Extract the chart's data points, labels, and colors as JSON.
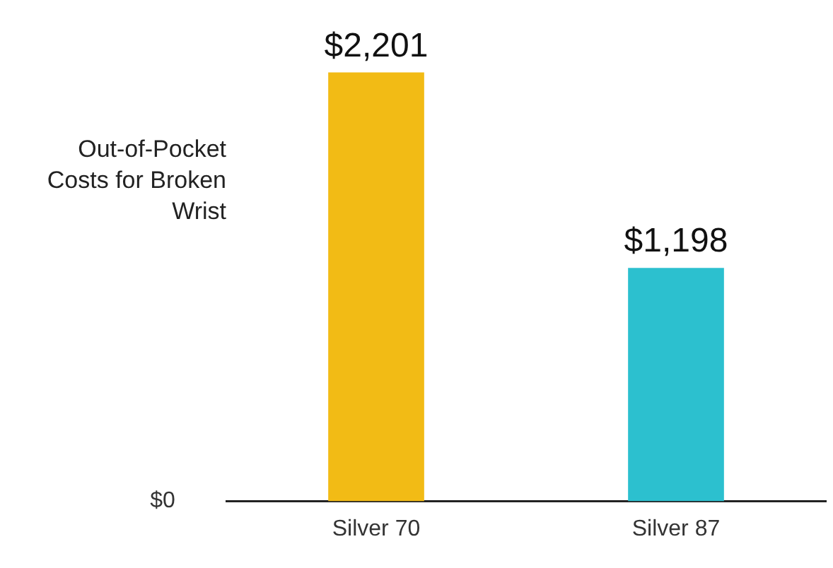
{
  "chart_data": {
    "type": "bar",
    "ylabel": "Out-of-Pocket Costs for Broken Wrist",
    "categories": [
      "Silver 70",
      "Silver 87"
    ],
    "values": [
      2201,
      1198
    ],
    "colors": [
      "#f2bb15",
      "#2cc0cf"
    ],
    "value_labels": [
      "$2,201",
      "$1,198"
    ],
    "annotations": [
      "$0"
    ],
    "grid": false,
    "legend": false
  }
}
